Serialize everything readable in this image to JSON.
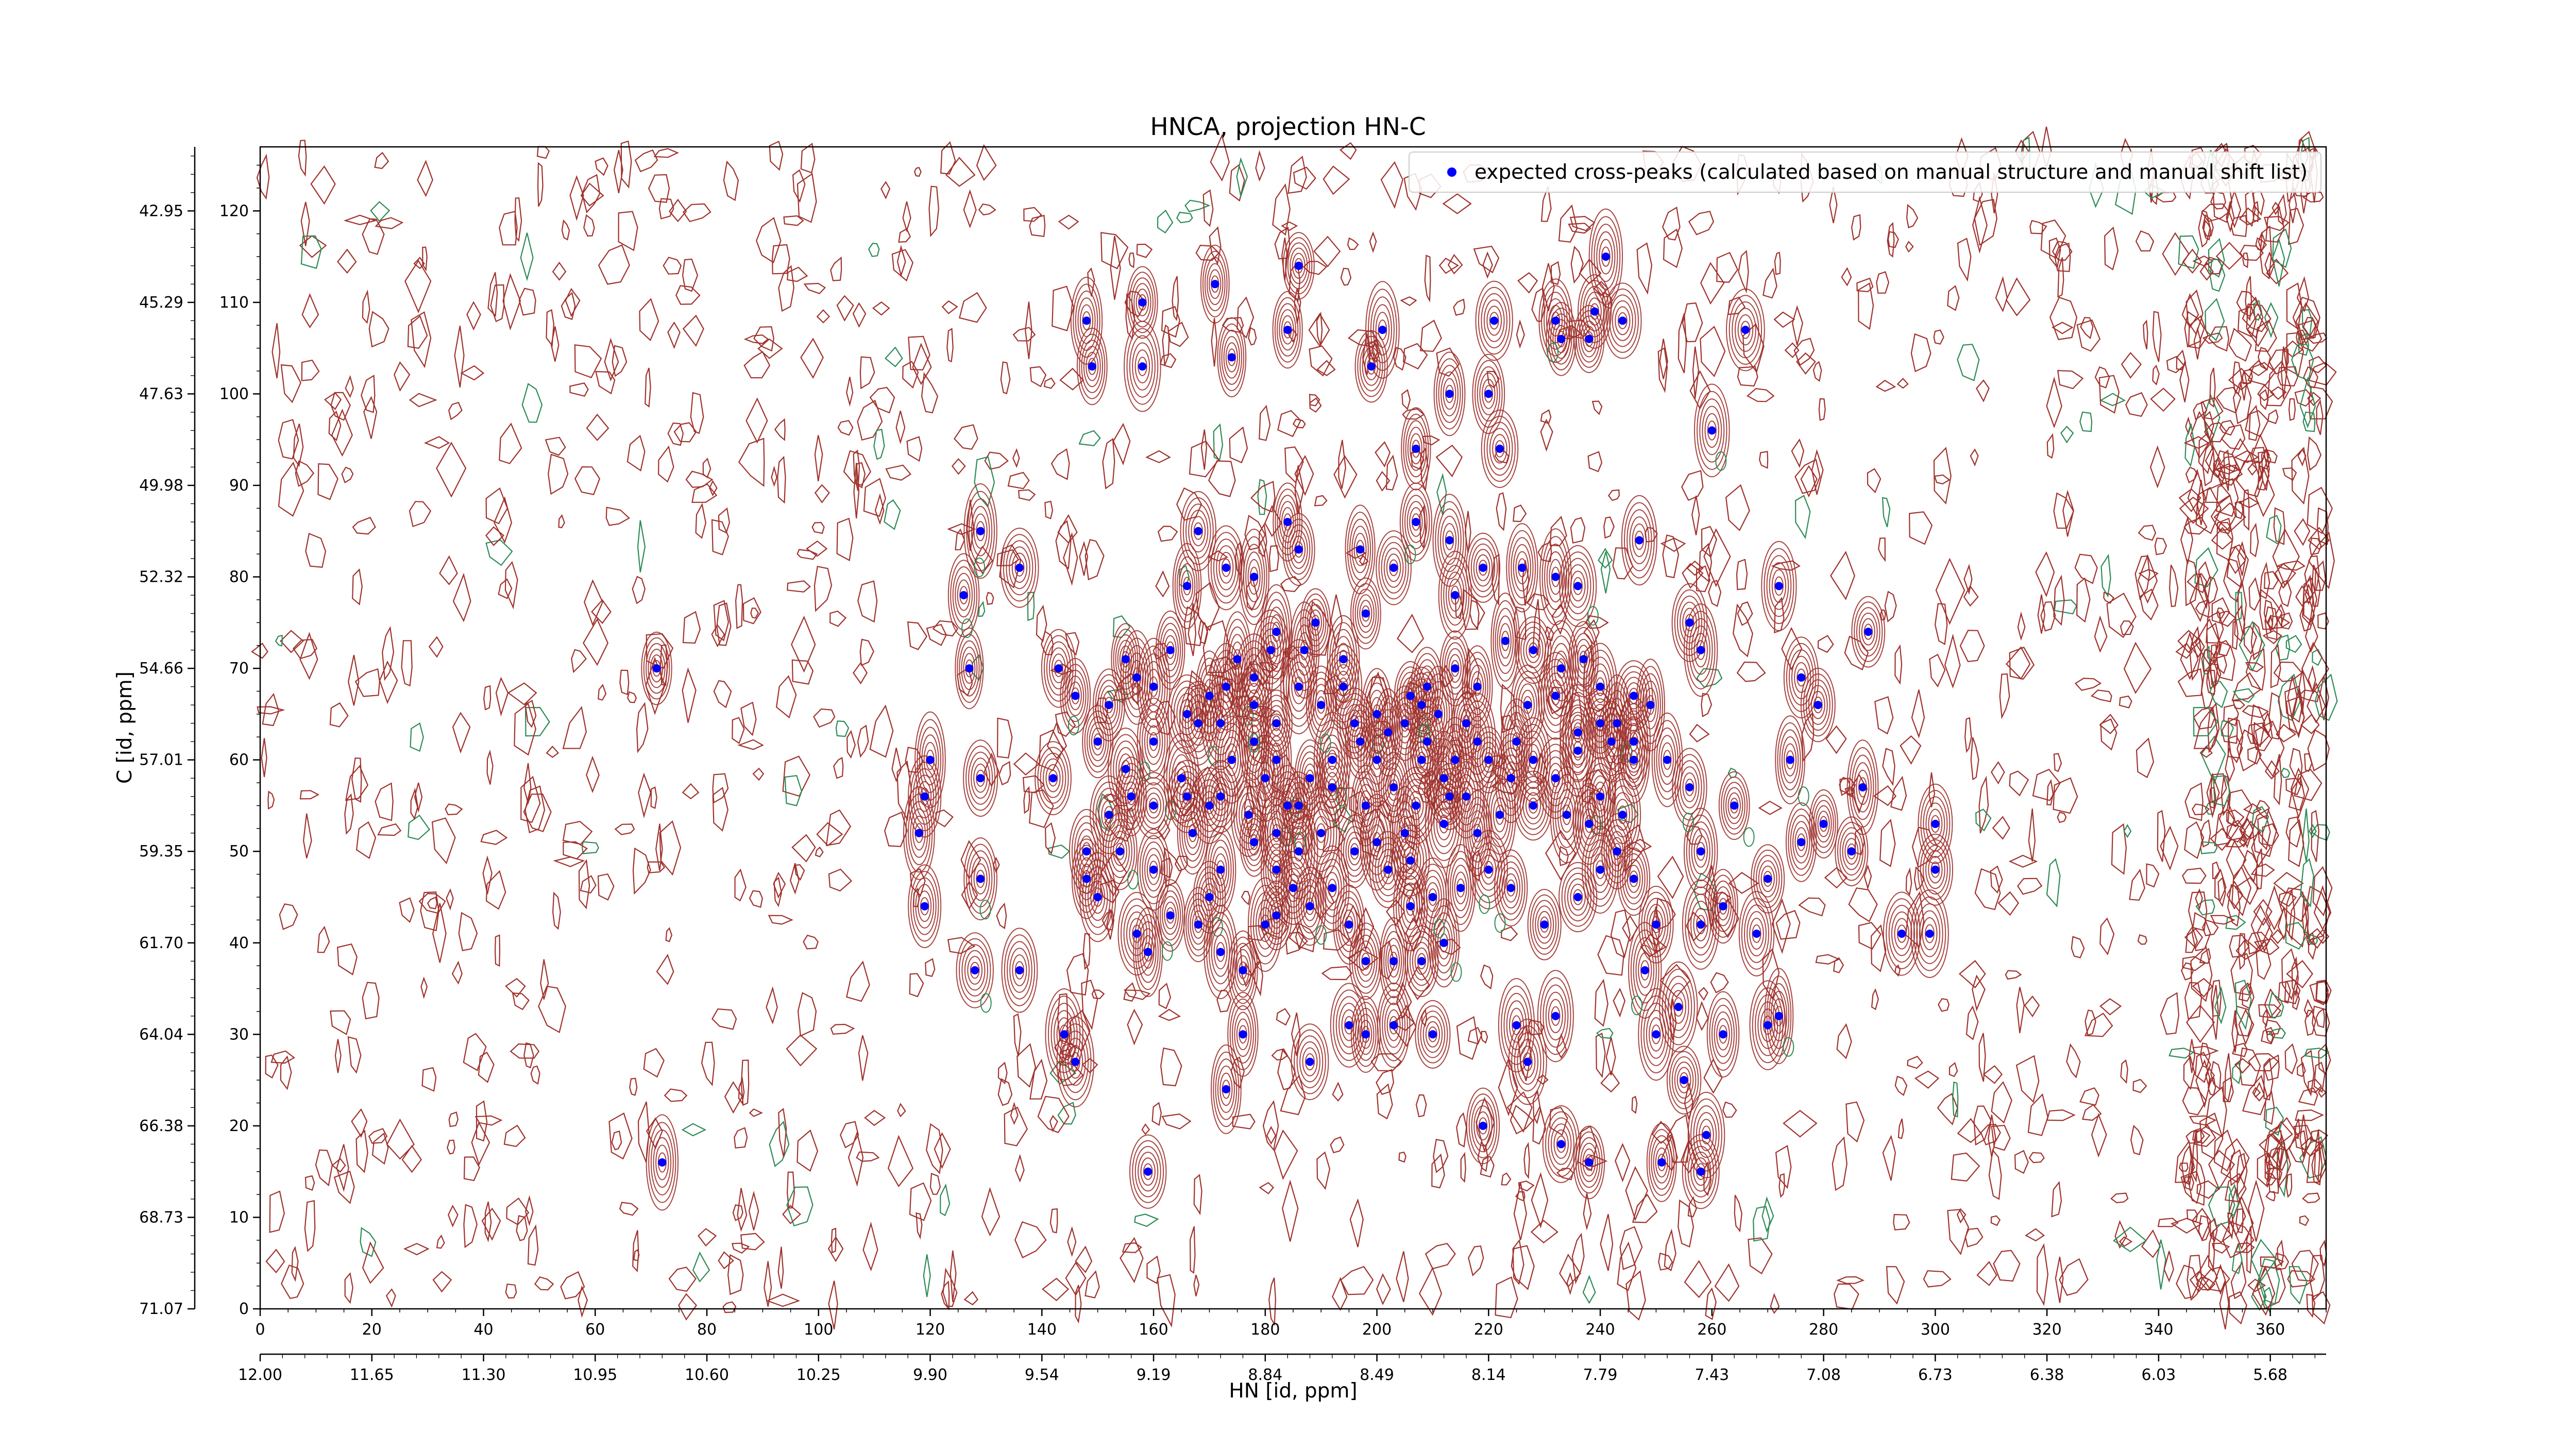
{
  "chart_data": {
    "type": "scatter",
    "title": "HNCA, projection HN-C",
    "xlabel": "HN [id, ppm]",
    "ylabel": "C [id, ppm]",
    "xlim": [
      0,
      370
    ],
    "ylim": [
      0,
      127
    ],
    "x_ticks": [
      "0",
      "20",
      "40",
      "60",
      "80",
      "100",
      "120",
      "140",
      "160",
      "180",
      "200",
      "220",
      "240",
      "260",
      "280",
      "300",
      "320",
      "340",
      "360"
    ],
    "y_ticks": [
      "0",
      "10",
      "20",
      "30",
      "40",
      "50",
      "60",
      "70",
      "80",
      "90",
      "100",
      "110",
      "120"
    ],
    "secondary_x_ticks": [
      "12.00",
      "11.65",
      "11.30",
      "10.95",
      "10.60",
      "10.25",
      "9.90",
      "9.54",
      "9.19",
      "8.84",
      "8.49",
      "8.14",
      "7.79",
      "7.43",
      "7.08",
      "6.73",
      "6.38",
      "6.03",
      "5.68"
    ],
    "secondary_y_ticks": [
      "71.07",
      "68.73",
      "66.38",
      "64.04",
      "61.70",
      "59.35",
      "57.01",
      "54.66",
      "52.32",
      "49.98",
      "47.63",
      "45.29",
      "42.95"
    ],
    "grid": false,
    "legend_position": "top-right",
    "colors": {
      "positive_contour": "#a0322d",
      "negative_contour": "#2e8b57",
      "peak_marker": "#0000ff"
    },
    "series": [
      {
        "name": "expected cross-peaks (calculated based on manual structure and manual shift list)",
        "points": [
          [
            71,
            70
          ],
          [
            72,
            16
          ],
          [
            126,
            78
          ],
          [
            129,
            85
          ],
          [
            127,
            70
          ],
          [
            120,
            60
          ],
          [
            119,
            56
          ],
          [
            118,
            52
          ],
          [
            119,
            44
          ],
          [
            129,
            58
          ],
          [
            129,
            47
          ],
          [
            136,
            81
          ],
          [
            136,
            37
          ],
          [
            128,
            37
          ],
          [
            142,
            58
          ],
          [
            144,
            30
          ],
          [
            143,
            70
          ],
          [
            148,
            108
          ],
          [
            149,
            103
          ],
          [
            158,
            110
          ],
          [
            158,
            103
          ],
          [
            166,
            65
          ],
          [
            168,
            64
          ],
          [
            172,
            64
          ],
          [
            170,
            67
          ],
          [
            173,
            68
          ],
          [
            178,
            69
          ],
          [
            181,
            72
          ],
          [
            178,
            80
          ],
          [
            168,
            85
          ],
          [
            173,
            81
          ],
          [
            166,
            79
          ],
          [
            186,
            83
          ],
          [
            184,
            86
          ],
          [
            175,
            71
          ],
          [
            182,
            74
          ],
          [
            187,
            72
          ],
          [
            189,
            75
          ],
          [
            194,
            71
          ],
          [
            198,
            76
          ],
          [
            197,
            83
          ],
          [
            203,
            81
          ],
          [
            207,
            86
          ],
          [
            213,
            84
          ],
          [
            214,
            78
          ],
          [
            219,
            81
          ],
          [
            226,
            81
          ],
          [
            232,
            80
          ],
          [
            236,
            79
          ],
          [
            247,
            84
          ],
          [
            246,
            67
          ],
          [
            242,
            62
          ],
          [
            249,
            66
          ],
          [
            256,
            75
          ],
          [
            258,
            72
          ],
          [
            272,
            79
          ],
          [
            276,
            69
          ],
          [
            288,
            74
          ],
          [
            146,
            67
          ],
          [
            152,
            66
          ],
          [
            155,
            71
          ],
          [
            157,
            69
          ],
          [
            160,
            68
          ],
          [
            163,
            72
          ],
          [
            150,
            62
          ],
          [
            155,
            59
          ],
          [
            160,
            62
          ],
          [
            165,
            58
          ],
          [
            160,
            55
          ],
          [
            167,
            52
          ],
          [
            172,
            48
          ],
          [
            170,
            45
          ],
          [
            160,
            48
          ],
          [
            150,
            45
          ],
          [
            148,
            47
          ],
          [
            157,
            41
          ],
          [
            159,
            39
          ],
          [
            163,
            43
          ],
          [
            168,
            42
          ],
          [
            172,
            39
          ],
          [
            176,
            37
          ],
          [
            180,
            42
          ],
          [
            182,
            43
          ],
          [
            182,
            48
          ],
          [
            185,
            46
          ],
          [
            188,
            44
          ],
          [
            192,
            46
          ],
          [
            195,
            42
          ],
          [
            198,
            38
          ],
          [
            203,
            38
          ],
          [
            208,
            38
          ],
          [
            212,
            40
          ],
          [
            206,
            44
          ],
          [
            202,
            48
          ],
          [
            206,
            49
          ],
          [
            210,
            45
          ],
          [
            215,
            46
          ],
          [
            220,
            48
          ],
          [
            224,
            46
          ],
          [
            230,
            42
          ],
          [
            236,
            45
          ],
          [
            240,
            48
          ],
          [
            243,
            50
          ],
          [
            246,
            47
          ],
          [
            250,
            42
          ],
          [
            258,
            42
          ],
          [
            258,
            50
          ],
          [
            262,
            44
          ],
          [
            268,
            41
          ],
          [
            270,
            47
          ],
          [
            276,
            51
          ],
          [
            264,
            55
          ],
          [
            256,
            57
          ],
          [
            252,
            60
          ],
          [
            246,
            62
          ],
          [
            240,
            64
          ],
          [
            236,
            63
          ],
          [
            232,
            67
          ],
          [
            227,
            66
          ],
          [
            225,
            62
          ],
          [
            220,
            60
          ],
          [
            216,
            64
          ],
          [
            211,
            65
          ],
          [
            206,
            67
          ],
          [
            200,
            65
          ],
          [
            197,
            62
          ],
          [
            192,
            60
          ],
          [
            188,
            58
          ],
          [
            184,
            55
          ],
          [
            182,
            60
          ],
          [
            178,
            62
          ],
          [
            180,
            58
          ],
          [
            174,
            60
          ],
          [
            172,
            56
          ],
          [
            177,
            54
          ],
          [
            186,
            55
          ],
          [
            192,
            57
          ],
          [
            198,
            55
          ],
          [
            203,
            57
          ],
          [
            208,
            60
          ],
          [
            212,
            58
          ],
          [
            216,
            56
          ],
          [
            222,
            54
          ],
          [
            228,
            55
          ],
          [
            232,
            58
          ],
          [
            236,
            61
          ],
          [
            240,
            56
          ],
          [
            244,
            54
          ],
          [
            238,
            53
          ],
          [
            234,
            54
          ],
          [
            228,
            60
          ],
          [
            224,
            58
          ],
          [
            218,
            52
          ],
          [
            212,
            53
          ],
          [
            207,
            55
          ],
          [
            200,
            51
          ],
          [
            196,
            50
          ],
          [
            190,
            52
          ],
          [
            186,
            50
          ],
          [
            182,
            52
          ],
          [
            178,
            51
          ],
          [
            170,
            55
          ],
          [
            166,
            56
          ],
          [
            156,
            56
          ],
          [
            152,
            54
          ],
          [
            148,
            50
          ],
          [
            154,
            50
          ],
          [
            209,
            68
          ],
          [
            214,
            70
          ],
          [
            218,
            68
          ],
          [
            223,
            73
          ],
          [
            228,
            72
          ],
          [
            233,
            70
          ],
          [
            237,
            71
          ],
          [
            240,
            68
          ],
          [
            243,
            64
          ],
          [
            246,
            60
          ],
          [
            194,
            68
          ],
          [
            190,
            66
          ],
          [
            186,
            68
          ],
          [
            182,
            64
          ],
          [
            178,
            66
          ],
          [
            218,
            62
          ],
          [
            214,
            60
          ],
          [
            209,
            62
          ],
          [
            205,
            64
          ],
          [
            200,
            60
          ],
          [
            196,
            64
          ],
          [
            202,
            63
          ],
          [
            208,
            66
          ],
          [
            213,
            56
          ],
          [
            205,
            52
          ],
          [
            171,
            112
          ],
          [
            174,
            104
          ],
          [
            186,
            114
          ],
          [
            184,
            107
          ],
          [
            199,
            103
          ],
          [
            201,
            107
          ],
          [
            213,
            100
          ],
          [
            220,
            100
          ],
          [
            222,
            94
          ],
          [
            207,
            94
          ],
          [
            221,
            108
          ],
          [
            238,
            106
          ],
          [
            233,
            106
          ],
          [
            232,
            108
          ],
          [
            239,
            109
          ],
          [
            244,
            108
          ],
          [
            241,
            115
          ],
          [
            260,
            96
          ],
          [
            266,
            107
          ],
          [
            146,
            27
          ],
          [
            159,
            15
          ],
          [
            176,
            30
          ],
          [
            173,
            24
          ],
          [
            188,
            27
          ],
          [
            195,
            31
          ],
          [
            198,
            30
          ],
          [
            203,
            31
          ],
          [
            210,
            30
          ],
          [
            225,
            31
          ],
          [
            233,
            18
          ],
          [
            238,
            16
          ],
          [
            251,
            16
          ],
          [
            258,
            15
          ],
          [
            259,
            19
          ],
          [
            255,
            25
          ],
          [
            262,
            30
          ],
          [
            270,
            31
          ],
          [
            272,
            32
          ],
          [
            250,
            30
          ],
          [
            254,
            33
          ],
          [
            248,
            37
          ],
          [
            232,
            32
          ],
          [
            219,
            20
          ],
          [
            227,
            27
          ],
          [
            274,
            60
          ],
          [
            279,
            66
          ],
          [
            287,
            57
          ],
          [
            294,
            41
          ],
          [
            299,
            41
          ],
          [
            300,
            48
          ],
          [
            300,
            53
          ],
          [
            285,
            50
          ],
          [
            280,
            53
          ]
        ]
      }
    ]
  }
}
